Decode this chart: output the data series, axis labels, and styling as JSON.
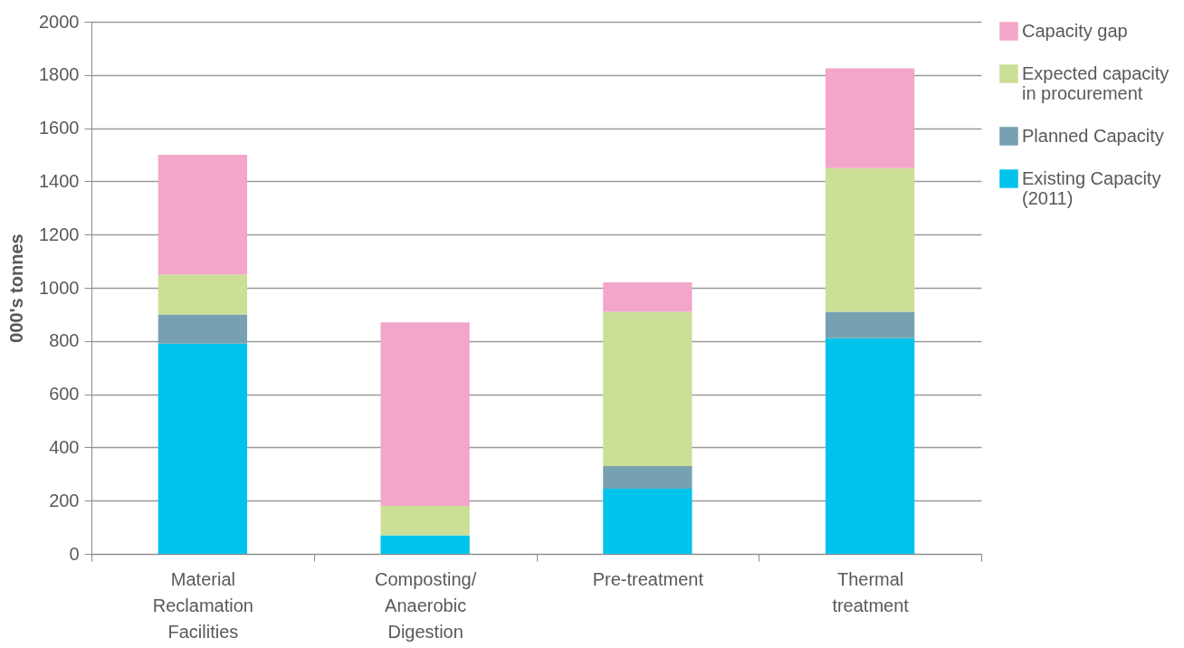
{
  "chart_data": {
    "type": "bar",
    "stacked": true,
    "ylabel": "000's tonnes",
    "categories": [
      "Material Reclamation Facilities",
      "Composting/Anaerobic Digestion",
      "Pre-treatment",
      "Thermal treatment"
    ],
    "series": [
      {
        "name": "Existing Capacity (2011)",
        "color": "#00c3ec",
        "values": [
          790,
          70,
          245,
          810
        ]
      },
      {
        "name": "Planned Capacity",
        "color": "#77a1b1",
        "values": [
          110,
          0,
          85,
          100
        ]
      },
      {
        "name": "Expected capacity in procurement",
        "color": "#cbdf96",
        "values": [
          150,
          110,
          580,
          540
        ]
      },
      {
        "name": "Capacity gap",
        "color": "#f3a6c9",
        "values": [
          450,
          690,
          110,
          375
        ]
      }
    ],
    "ylim": [
      0,
      2000
    ],
    "yticks": [
      0,
      200,
      400,
      600,
      800,
      1000,
      1200,
      1400,
      1600,
      1800,
      2000
    ],
    "grid": "y",
    "legend": "right"
  }
}
